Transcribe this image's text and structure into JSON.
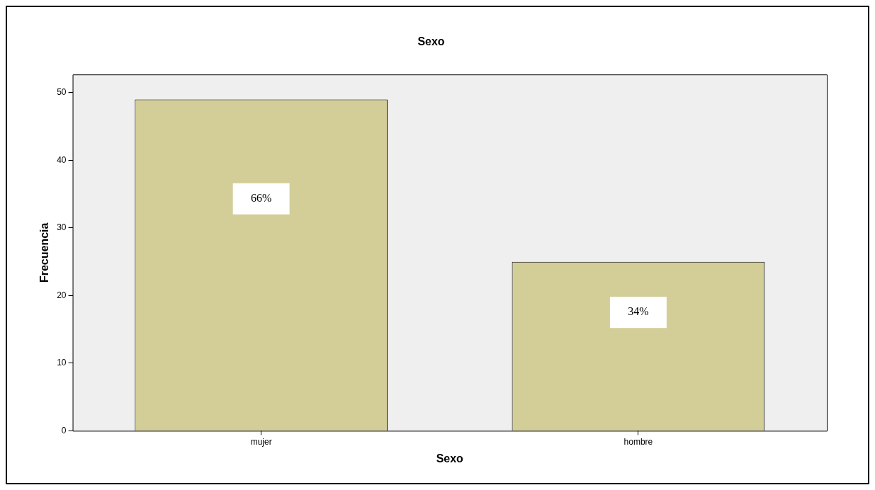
{
  "chart_data": {
    "type": "bar",
    "title": "Sexo",
    "xlabel": "Sexo",
    "ylabel": "Frecuencia",
    "categories": [
      "mujer",
      "hombre"
    ],
    "values": [
      49,
      25
    ],
    "color": "#d3cd97",
    "annotations": [
      "66%",
      "34%"
    ],
    "ylim": [
      0,
      52.7
    ],
    "yticks": [
      0,
      10,
      20,
      30,
      40,
      50
    ],
    "grid": false,
    "legend": false
  }
}
